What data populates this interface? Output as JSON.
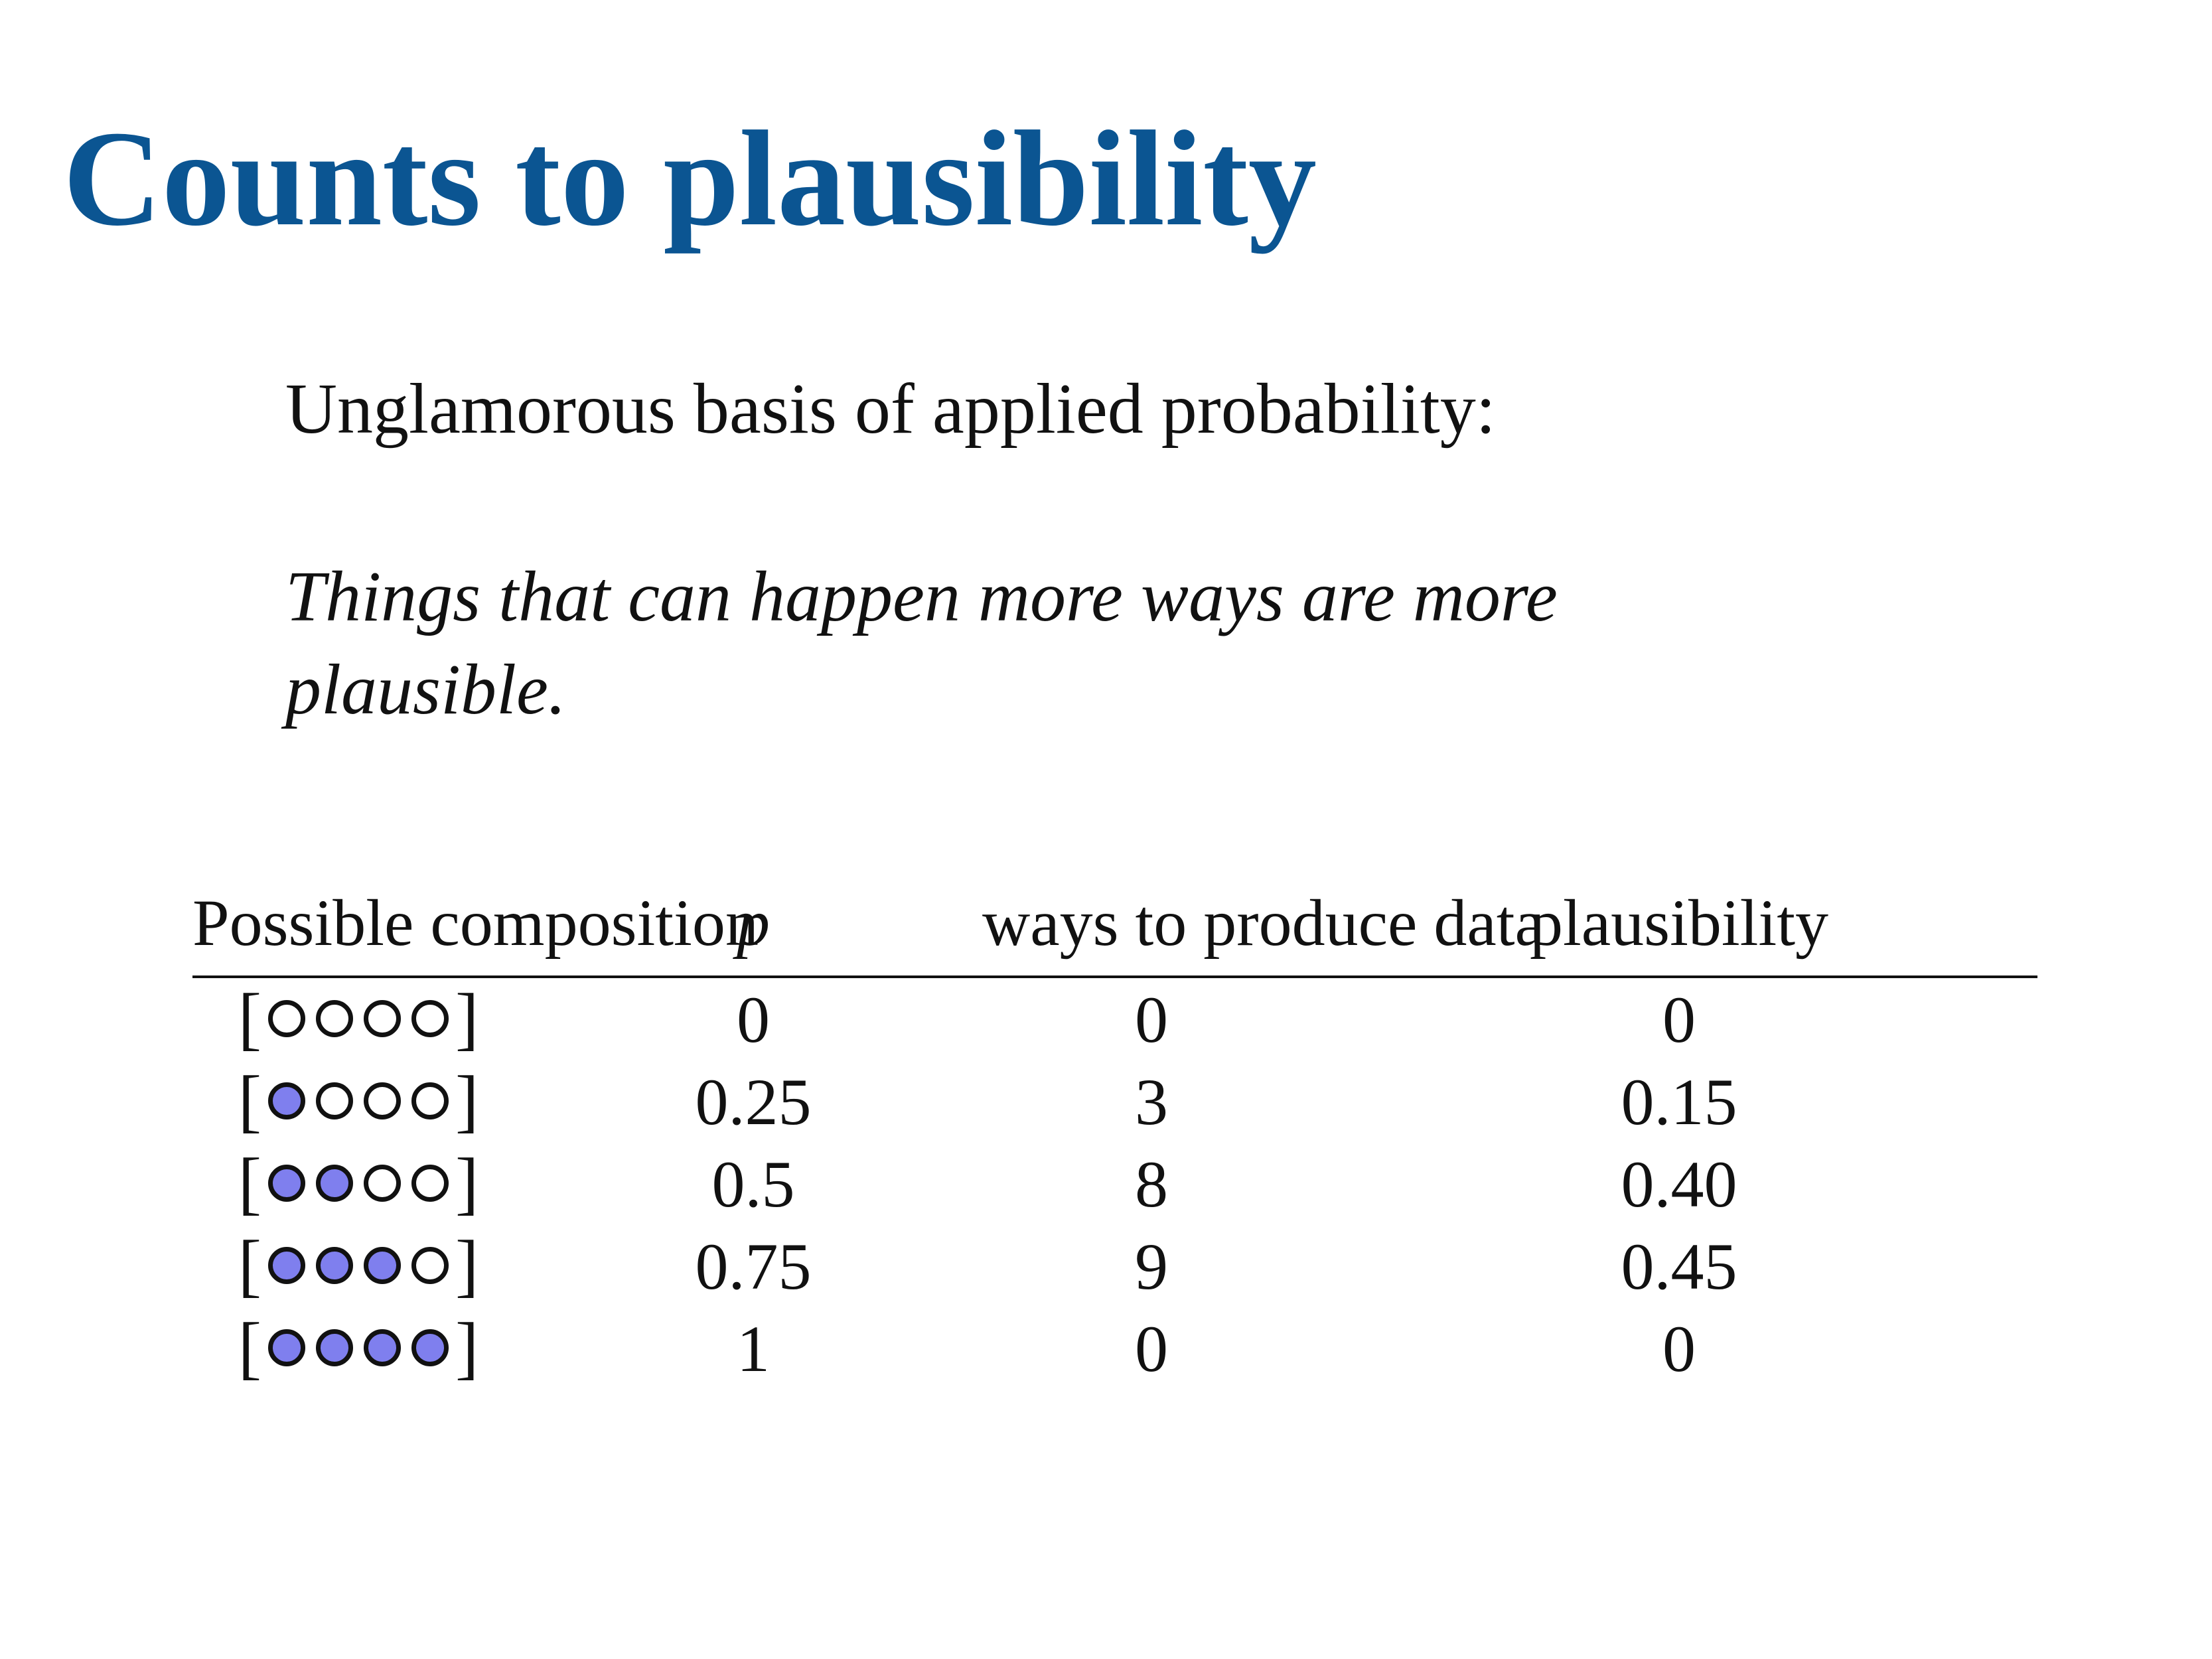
{
  "title": "Counts to plausibility",
  "intro": "Unglamorous basis of applied probability:",
  "quote": "Things that can happen more ways are more plausible.",
  "colors": {
    "title": "#0b5592",
    "blue_marble": "#7f7fee",
    "white_marble": "#ffffff"
  },
  "table": {
    "headers": {
      "composition": "Possible composition",
      "p": "p",
      "ways": "ways to produce data",
      "plausibility": "plausibility"
    },
    "rows": [
      {
        "composition": [
          "white",
          "white",
          "white",
          "white"
        ],
        "p": "0",
        "ways": "0",
        "plausibility": "0"
      },
      {
        "composition": [
          "blue",
          "white",
          "white",
          "white"
        ],
        "p": "0.25",
        "ways": "3",
        "plausibility": "0.15"
      },
      {
        "composition": [
          "blue",
          "blue",
          "white",
          "white"
        ],
        "p": "0.5",
        "ways": "8",
        "plausibility": "0.40"
      },
      {
        "composition": [
          "blue",
          "blue",
          "blue",
          "white"
        ],
        "p": "0.75",
        "ways": "9",
        "plausibility": "0.45"
      },
      {
        "composition": [
          "blue",
          "blue",
          "blue",
          "blue"
        ],
        "p": "1",
        "ways": "0",
        "plausibility": "0"
      }
    ]
  }
}
